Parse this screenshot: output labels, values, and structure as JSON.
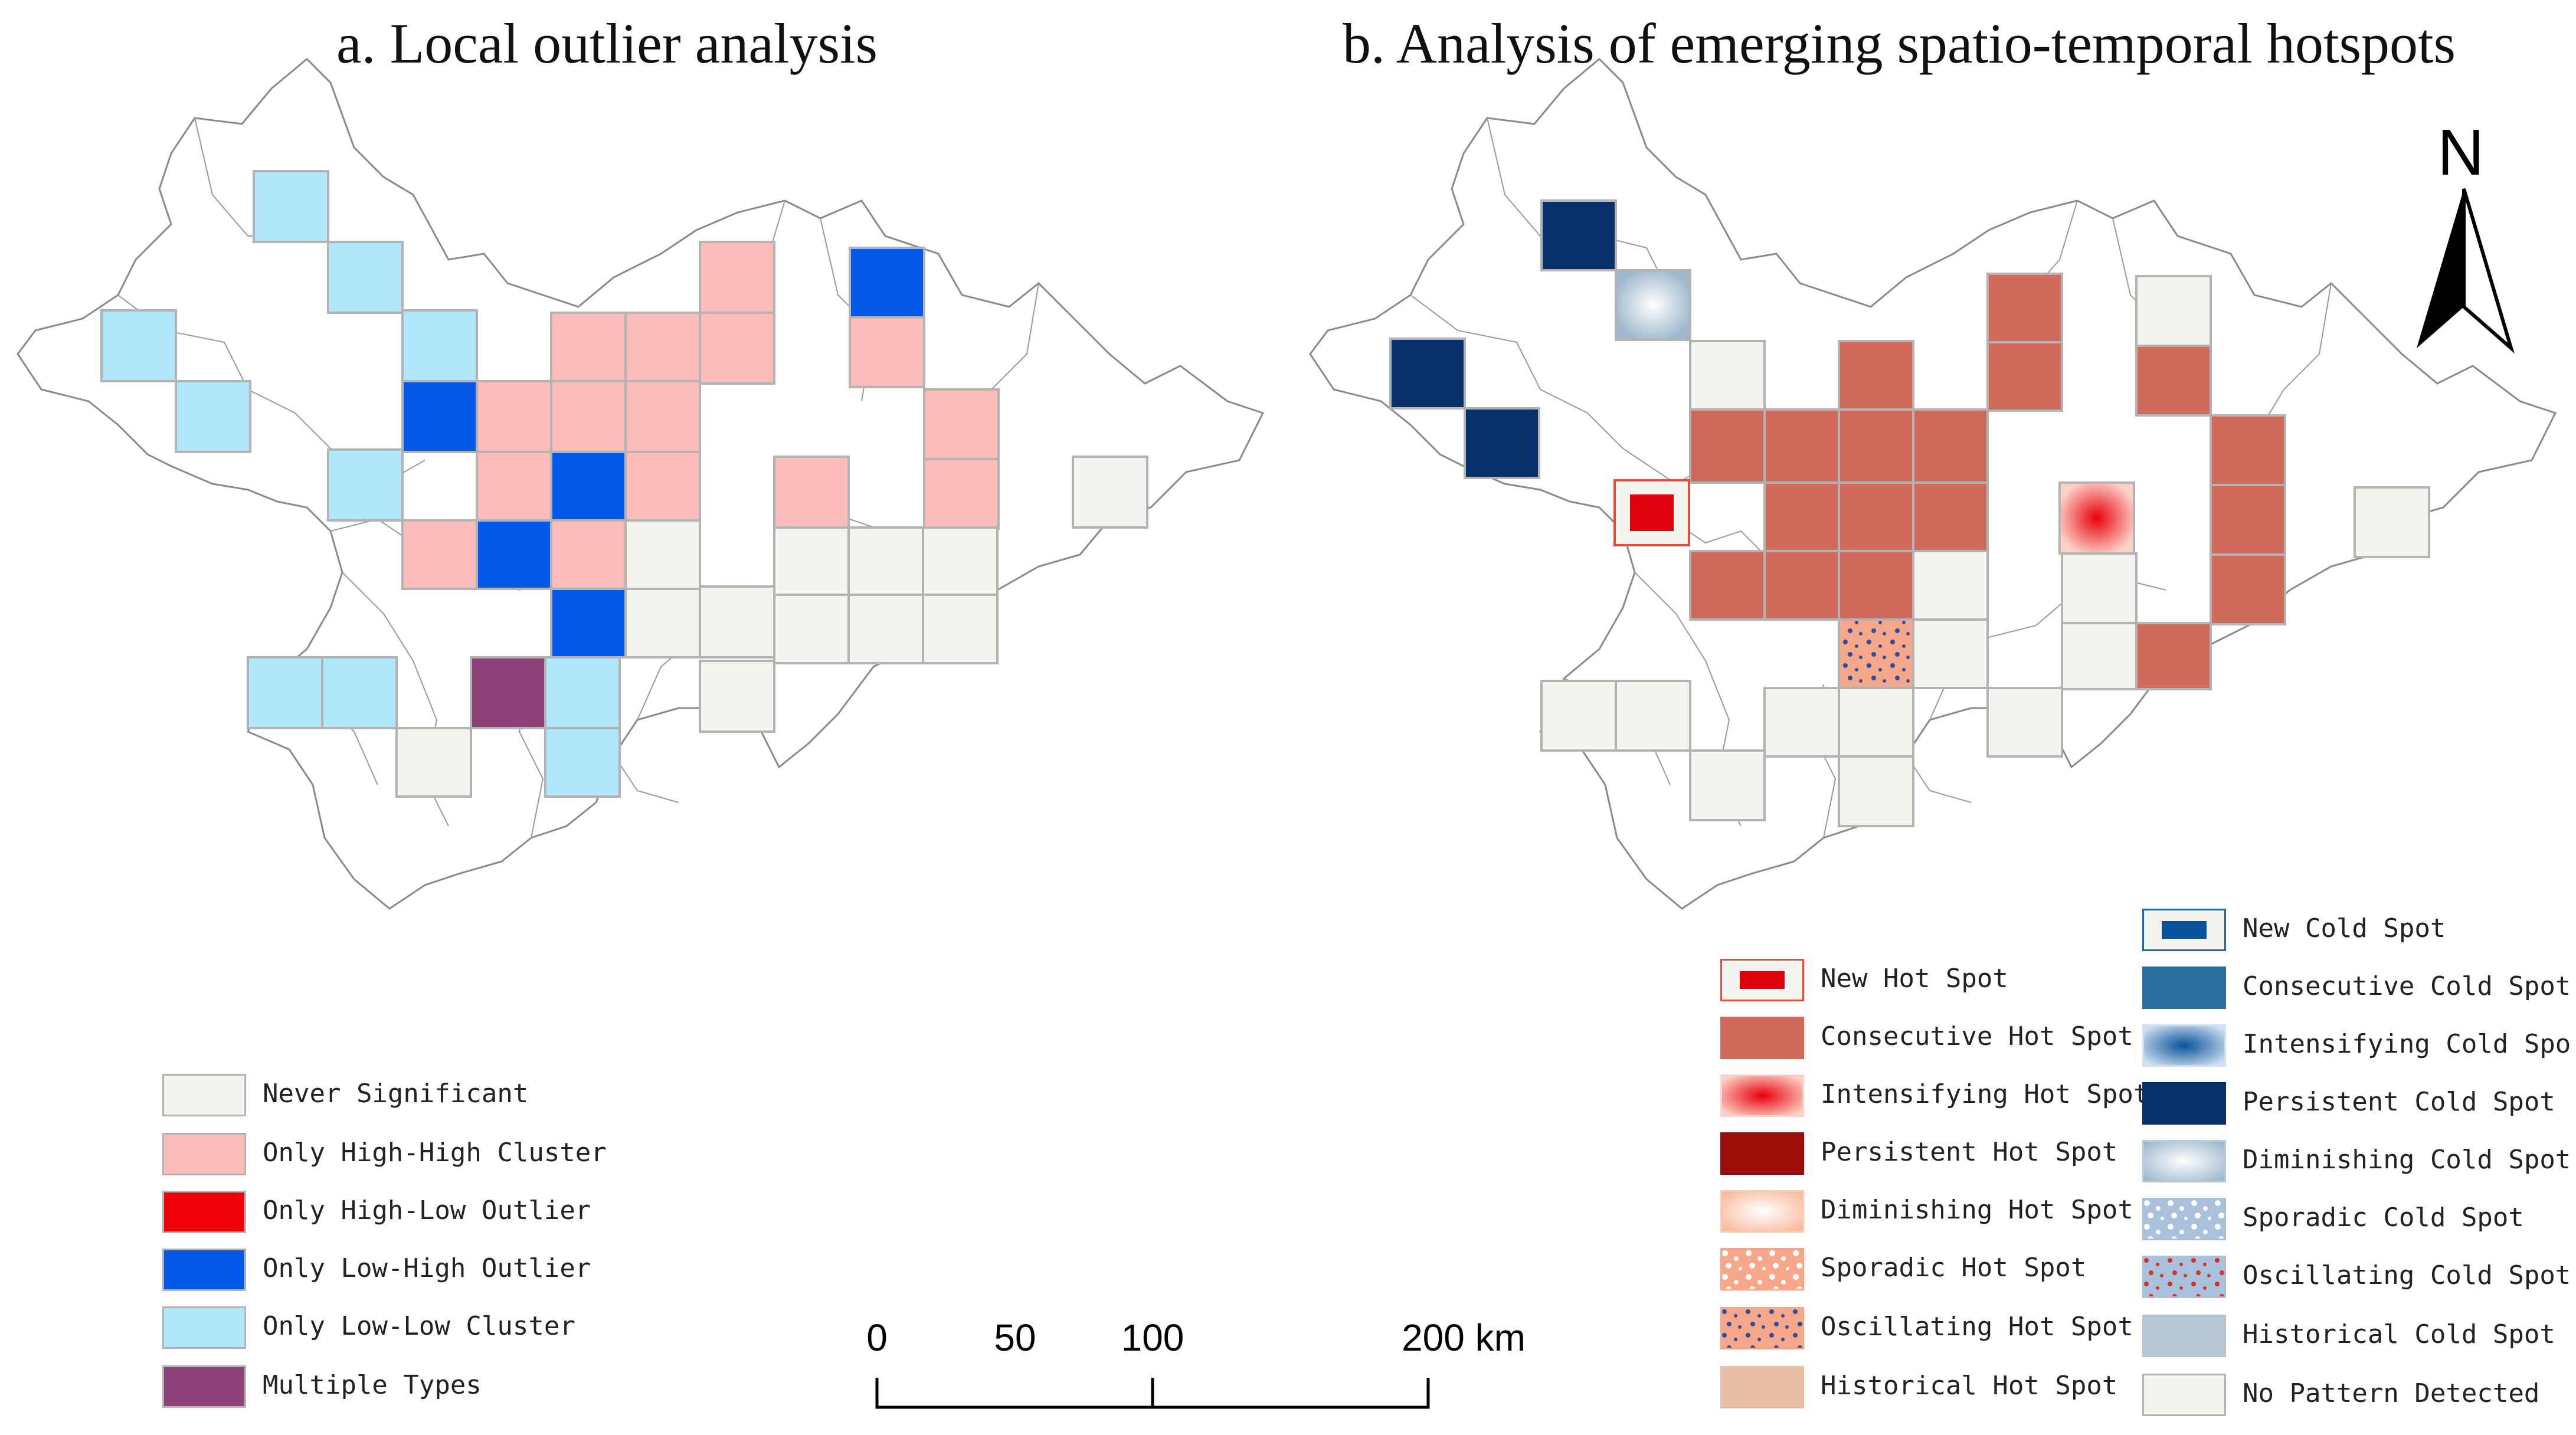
{
  "titles": {
    "a": "a. Local outlier analysis",
    "b": "b. Analysis of emerging spatio-temporal hotspots"
  },
  "colors": {
    "never_significant": "#f4f4ef",
    "high_high": "#fcbcb9",
    "high_low": "#f0000a",
    "low_high": "#0559e8",
    "low_low": "#b0e7fb",
    "multiple": "#8e4079",
    "consecutive_hot": "#d06b5c",
    "new_hot": "#e0000b",
    "persistent_cold": "#08306b",
    "no_pattern": "#f4f4ef"
  },
  "legend_a": {
    "items": [
      {
        "label": "Never Significant",
        "class": "never"
      },
      {
        "label": "Only High-High Cluster",
        "class": "hh"
      },
      {
        "label": "Only High-Low Outlier",
        "class": "hl"
      },
      {
        "label": "Only Low-High Outlier",
        "class": "lh"
      },
      {
        "label": "Only Low-Low Cluster",
        "class": "ll"
      },
      {
        "label": "Multiple Types",
        "class": "multi"
      }
    ]
  },
  "legend_b_left": {
    "items": [
      {
        "label": "New Hot Spot",
        "class": "newhot"
      },
      {
        "label": "Consecutive Hot Spot",
        "class": "conshot"
      },
      {
        "label": "Intensifying Hot Spot",
        "class": "inthot"
      },
      {
        "label": "Persistent Hot Spot",
        "class": "perhot"
      },
      {
        "label": "Diminishing Hot Spot",
        "class": "dimhot"
      },
      {
        "label": "Sporadic Hot Spot",
        "class": "sporhot"
      },
      {
        "label": "Oscillating Hot Spot",
        "class": "oschot"
      },
      {
        "label": "Historical Hot Spot",
        "class": "histhot"
      }
    ]
  },
  "legend_b_right": {
    "items": [
      {
        "label": "New Cold Spot",
        "class": "newcold"
      },
      {
        "label": "Consecutive Cold Spot",
        "class": "conscold"
      },
      {
        "label": "Intensifying Cold Spo",
        "class": "intcold"
      },
      {
        "label": "Persistent Cold Spot",
        "class": "percold"
      },
      {
        "label": "Diminishing Cold Spot",
        "class": "dimcold"
      },
      {
        "label": "Sporadic Cold Spot",
        "class": "sporcold"
      },
      {
        "label": "Oscillating Cold Spot",
        "class": "osccold"
      },
      {
        "label": "Historical Cold Spot",
        "class": "histcold"
      },
      {
        "label": "No Pattern Detected",
        "class": "nopat"
      }
    ]
  },
  "scale": {
    "labels": [
      "0",
      "50",
      "100",
      "200 km"
    ],
    "km_values": [
      0,
      50,
      100,
      200
    ]
  },
  "north": {
    "label": "N"
  }
}
